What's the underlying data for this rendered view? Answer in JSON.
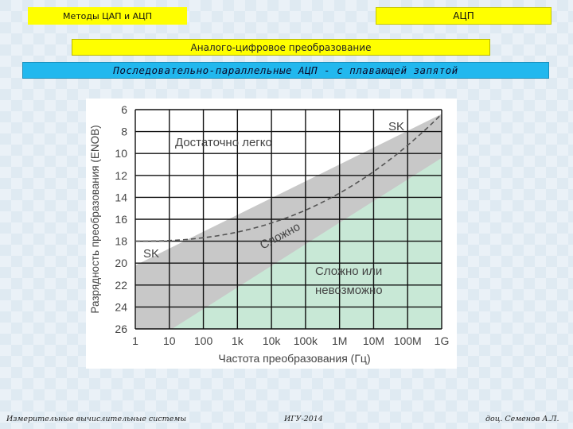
{
  "header": {
    "left_title": "Методы ЦАП и АЦП",
    "right_title": "АЦП"
  },
  "subtitle": "Аналого-цифровое преобразование",
  "topic": "Последовательно-параллельные АЦП - с плавающей запятой",
  "diagram": {
    "ylabel": "Разрядность преобразования (ENOB)",
    "xlabel": "Частота преобразования (Гц)",
    "y_ticks": [
      "6",
      "8",
      "10",
      "12",
      "14",
      "16",
      "18",
      "20",
      "22",
      "24",
      "26"
    ],
    "x_ticks": [
      "1",
      "10",
      "100",
      "1k",
      "10k",
      "100k",
      "1M",
      "10M",
      "100M",
      "1G"
    ],
    "region_easy": "Достаточно легко",
    "region_hard": "Сложно",
    "region_impossible_line1": "Сложно или",
    "region_impossible_line2": "невозможно",
    "sk_left": "SK",
    "sk_right": "SK",
    "colors": {
      "gray_band": "#c8c8c8",
      "green_region": "#c8e8d6",
      "grid": "#111111"
    }
  },
  "footer": {
    "left": "Измерительные вычислительные системы",
    "center": "ИГУ-2014",
    "right": "доц. Семенов А.Л."
  }
}
